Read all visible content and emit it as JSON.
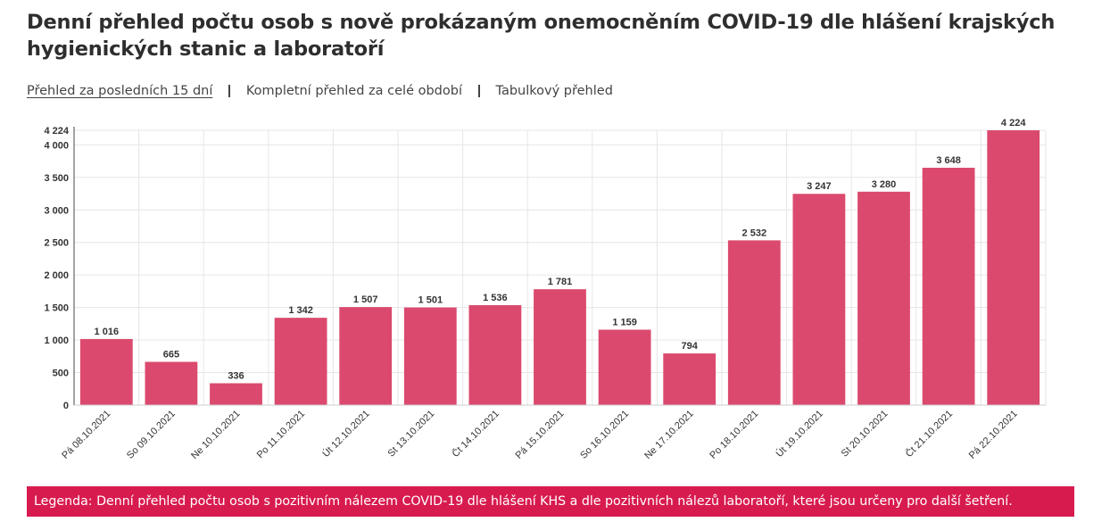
{
  "title": "Denní přehled počtu osob s nově prokázaným onemocněním COVID-19 dle hlášení krajských hygienických stanic a laboratoří",
  "tabs": [
    {
      "label": "Přehled za posledních 15 dní",
      "active": true
    },
    {
      "label": "Kompletní přehled za celé období",
      "active": false
    },
    {
      "label": "Tabulkový přehled",
      "active": false
    }
  ],
  "legend": "Legenda: Denní přehled počtu osob s pozitivním nálezem COVID-19 dle hlášení KHS a dle pozitivních nálezů laboratoří, které jsou určeny pro další šetření.",
  "colors": {
    "bar": "#db4a6e",
    "legend_bg": "#d81b4f",
    "grid": "#e6e6e6"
  },
  "chart_data": {
    "type": "bar",
    "categories": [
      "Pá 08.10.2021",
      "So 09.10.2021",
      "Ne 10.10.2021",
      "Po 11.10.2021",
      "Út 12.10.2021",
      "St 13.10.2021",
      "Čt 14.10.2021",
      "Pá 15.10.2021",
      "So 16.10.2021",
      "Ne 17.10.2021",
      "Po 18.10.2021",
      "Út 19.10.2021",
      "St 20.10.2021",
      "Čt 21.10.2021",
      "Pá 22.10.2021"
    ],
    "values": [
      1016,
      665,
      336,
      1342,
      1507,
      1501,
      1536,
      1781,
      1159,
      794,
      2532,
      3247,
      3280,
      3648,
      4224
    ],
    "value_labels": [
      "1 016",
      "665",
      "336",
      "1 342",
      "1 507",
      "1 501",
      "1 536",
      "1 781",
      "1 159",
      "794",
      "2 532",
      "3 247",
      "3 280",
      "3 648",
      "4 224"
    ],
    "y_ticks": [
      0,
      500,
      1000,
      1500,
      2000,
      2500,
      3000,
      3500,
      4000
    ],
    "y_tick_labels": [
      "0",
      "500",
      "1 000",
      "1 500",
      "2 000",
      "2 500",
      "3 000",
      "3 500",
      "4 000"
    ],
    "y_max_label": "4 224",
    "ylim": [
      0,
      4224
    ],
    "grid": true,
    "xlabel": "",
    "ylabel": ""
  }
}
